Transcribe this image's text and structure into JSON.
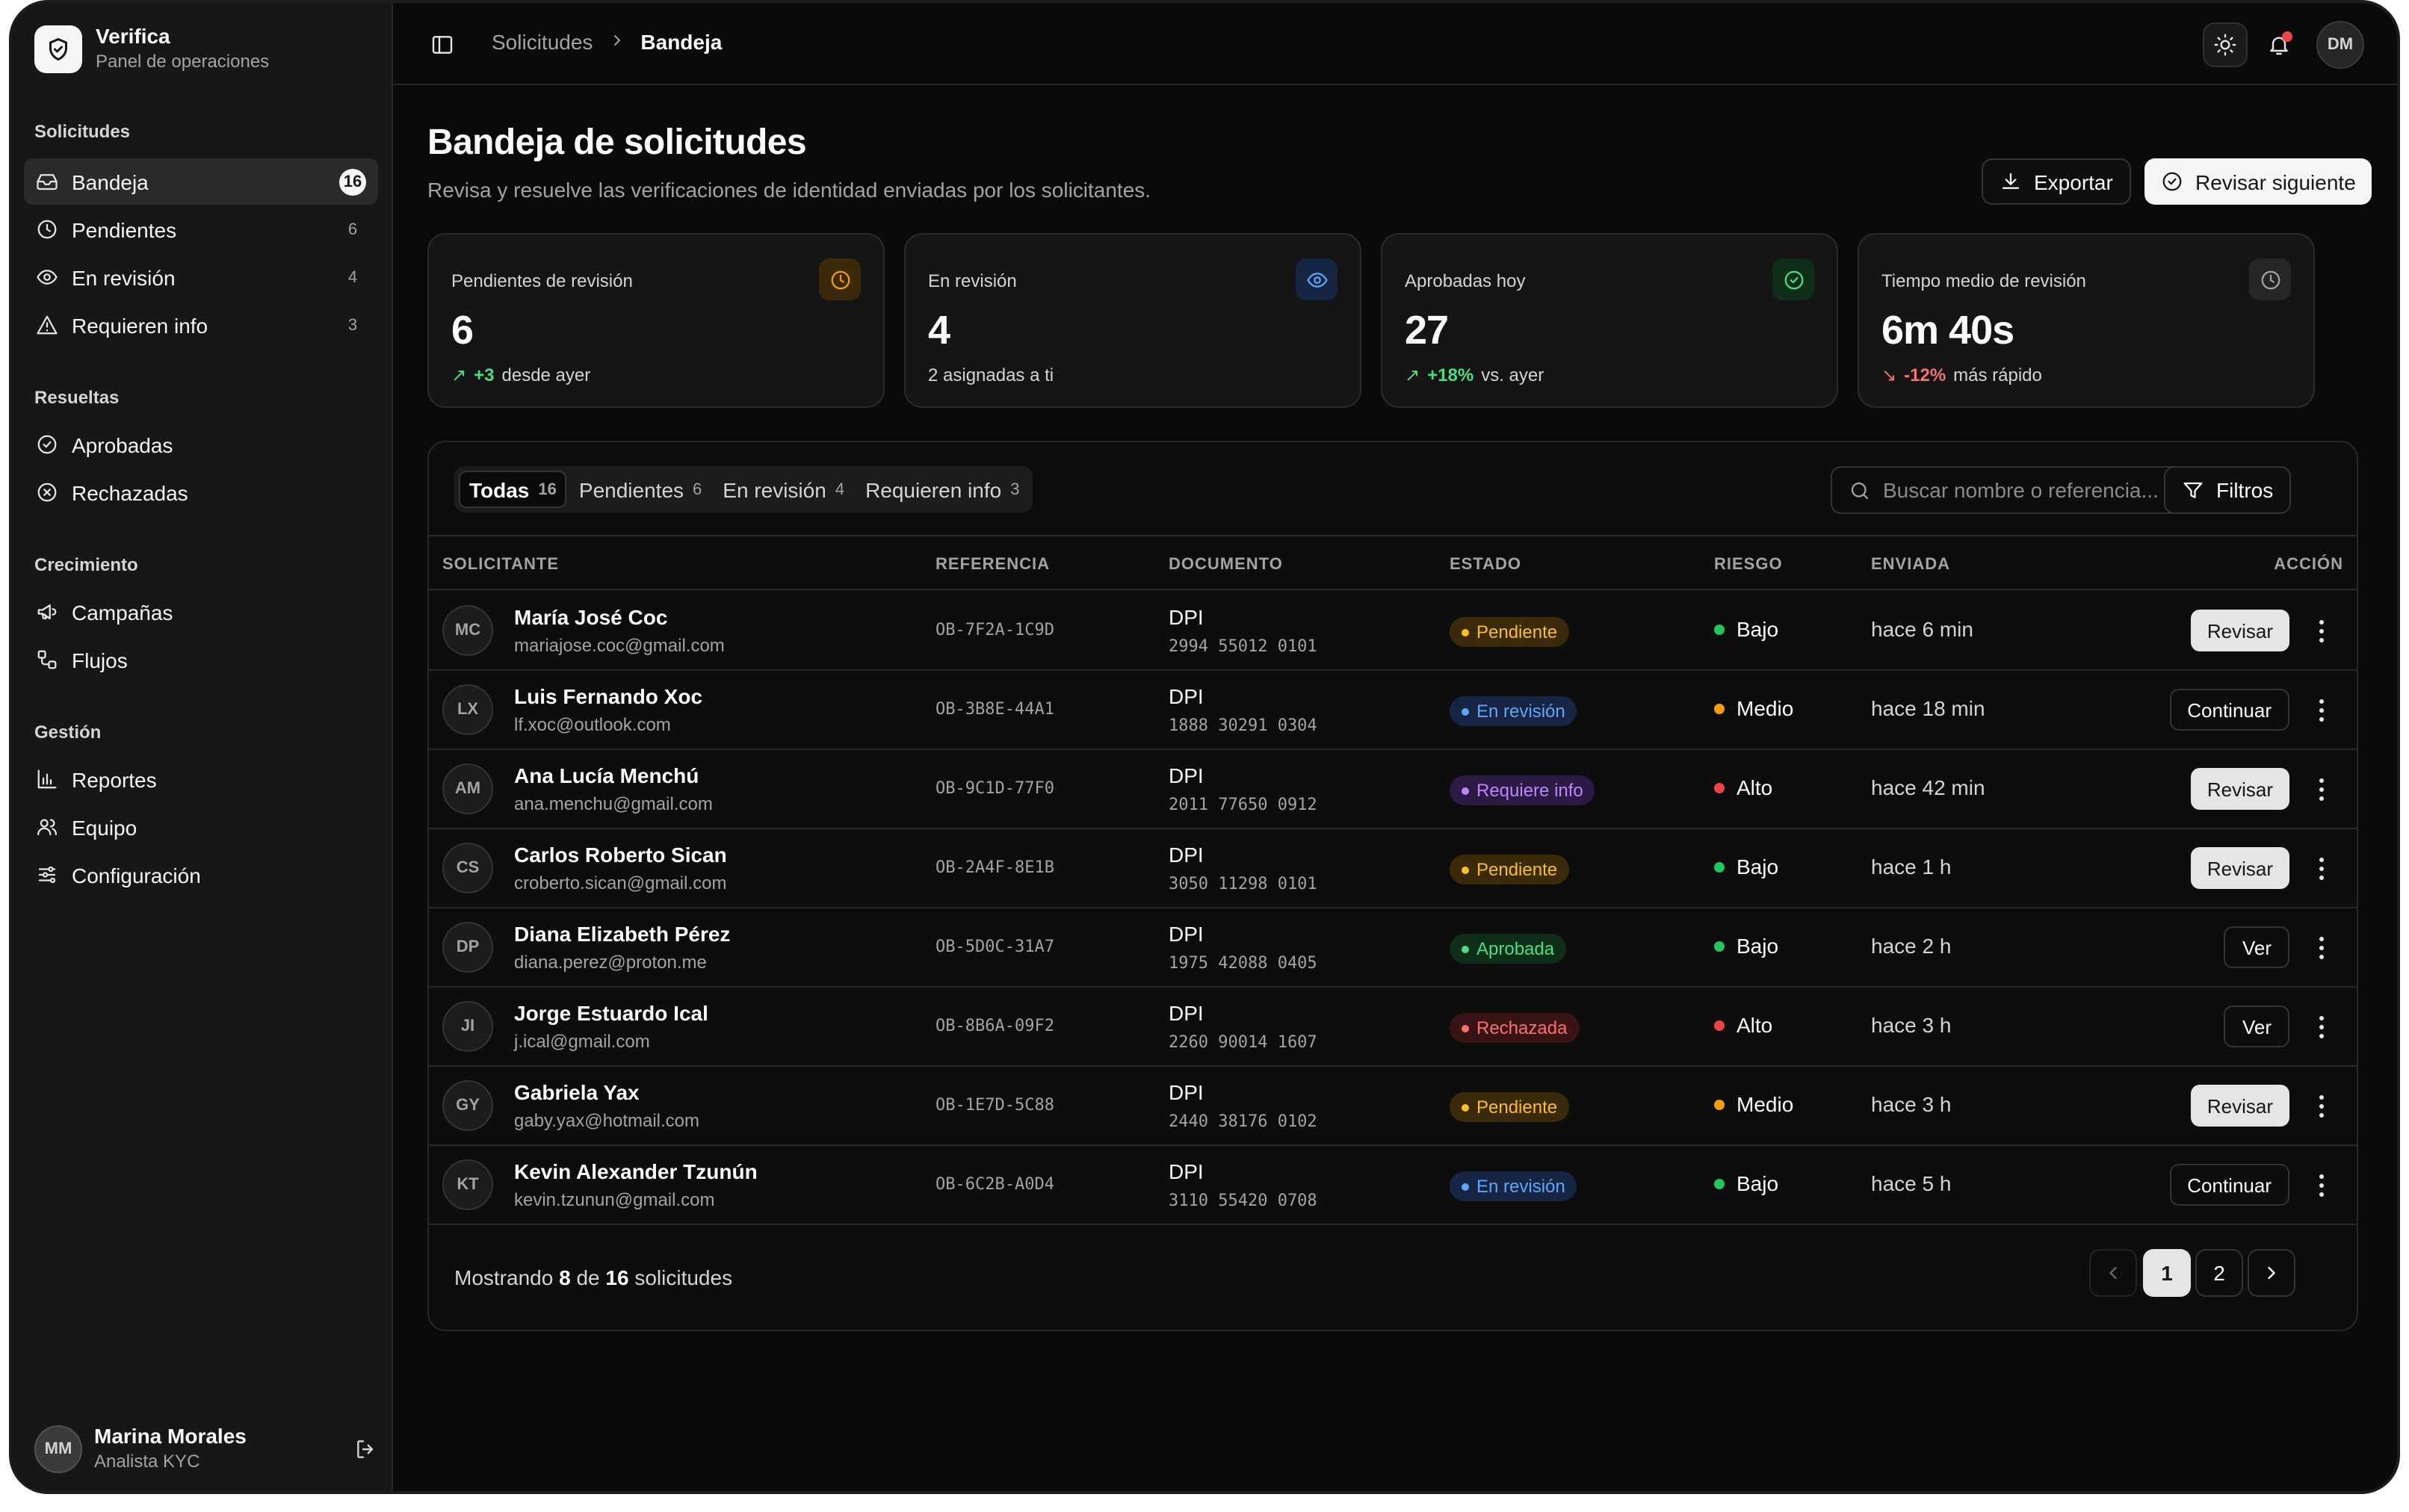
{
  "brand": {
    "name": "Verifica",
    "subtitle": "Panel de operaciones"
  },
  "sidebar": {
    "groups": [
      {
        "label": "Solicitudes",
        "items": [
          {
            "label": "Bandeja",
            "count": "16",
            "icon": "inbox-icon",
            "active": true
          },
          {
            "label": "Pendientes",
            "count": "6",
            "icon": "clock-icon"
          },
          {
            "label": "En revisión",
            "count": "4",
            "icon": "eye-icon"
          },
          {
            "label": "Requieren info",
            "count": "3",
            "icon": "alert-triangle-icon"
          }
        ]
      },
      {
        "label": "Resueltas",
        "items": [
          {
            "label": "Aprobadas",
            "icon": "check-circle-icon"
          },
          {
            "label": "Rechazadas",
            "icon": "x-circle-icon"
          }
        ]
      },
      {
        "label": "Crecimiento",
        "items": [
          {
            "label": "Campañas",
            "icon": "megaphone-icon"
          },
          {
            "label": "Flujos",
            "icon": "workflow-icon"
          }
        ]
      },
      {
        "label": "Gestión",
        "items": [
          {
            "label": "Reportes",
            "icon": "bar-chart-icon"
          },
          {
            "label": "Equipo",
            "icon": "users-icon"
          },
          {
            "label": "Configuración",
            "icon": "sliders-icon"
          }
        ]
      }
    ],
    "user": {
      "initials": "MM",
      "name": "Marina Morales",
      "role": "Analista KYC"
    }
  },
  "topbar": {
    "breadcrumb": [
      "Solicitudes",
      "Bandeja"
    ],
    "avatar": "DM"
  },
  "header": {
    "title": "Bandeja de solicitudes",
    "subtitle": "Revisa y resuelve las verificaciones de identidad enviadas por los solicitantes.",
    "export_label": "Exportar",
    "next_label": "Revisar siguiente"
  },
  "stats": [
    {
      "label": "Pendientes de revisión",
      "value": "6",
      "delta": "+3",
      "delta_color": "#4ade80",
      "foot": "desde ayer",
      "icon": "clock-icon",
      "accent": "#f59e0b",
      "accent_bg": "#3a2a0a"
    },
    {
      "label": "En revisión",
      "value": "4",
      "delta": "",
      "foot": "2 asignadas a ti",
      "icon": "eye-icon",
      "accent": "#60a5fa",
      "accent_bg": "#172544"
    },
    {
      "label": "Aprobadas hoy",
      "value": "27",
      "delta": "+18%",
      "delta_color": "#4ade80",
      "foot": "vs. ayer",
      "icon": "check-circle-icon",
      "accent": "#4ade80",
      "accent_bg": "#0f2e1a"
    },
    {
      "label": "Tiempo medio de revisión",
      "value": "6m 40s",
      "delta": "-12%",
      "delta_color": "#f87171",
      "foot": "más rápido",
      "icon": "clock-icon",
      "accent": "#a3a3a3",
      "accent_bg": "#262626"
    }
  ],
  "tabs": [
    {
      "label": "Todas",
      "count": "16",
      "active": true
    },
    {
      "label": "Pendientes",
      "count": "6"
    },
    {
      "label": "En revisión",
      "count": "4"
    },
    {
      "label": "Requieren info",
      "count": "3"
    }
  ],
  "search": {
    "placeholder": "Buscar nombre o referencia..."
  },
  "filters_label": "Filtros",
  "columns": [
    "SOLICITANTE",
    "REFERENCIA",
    "DOCUMENTO",
    "ESTADO",
    "RIESGO",
    "ENVIADA",
    "ACCIÓN"
  ],
  "rows": [
    {
      "initials": "MC",
      "name": "María José Coc",
      "email": "mariajose.coc@gmail.com",
      "ref": "OB-7F2A-1C9D",
      "doc": "DPI",
      "doc_num": "2994 55012 0101",
      "status": "Pendiente",
      "risk": "Bajo",
      "sent": "hace 6 min",
      "action": "Revisar"
    },
    {
      "initials": "LX",
      "name": "Luis Fernando Xoc",
      "email": "lf.xoc@outlook.com",
      "ref": "OB-3B8E-44A1",
      "doc": "DPI",
      "doc_num": "1888 30291 0304",
      "status": "En revisión",
      "risk": "Medio",
      "sent": "hace 18 min",
      "action": "Continuar"
    },
    {
      "initials": "AM",
      "name": "Ana Lucía Menchú",
      "email": "ana.menchu@gmail.com",
      "ref": "OB-9C1D-77F0",
      "doc": "DPI",
      "doc_num": "2011 77650 0912",
      "status": "Requiere info",
      "risk": "Alto",
      "sent": "hace 42 min",
      "action": "Revisar"
    },
    {
      "initials": "CS",
      "name": "Carlos Roberto Sican",
      "email": "croberto.sican@gmail.com",
      "ref": "OB-2A4F-8E1B",
      "doc": "DPI",
      "doc_num": "3050 11298 0101",
      "status": "Pendiente",
      "risk": "Bajo",
      "sent": "hace 1 h",
      "action": "Revisar"
    },
    {
      "initials": "DP",
      "name": "Diana Elizabeth Pérez",
      "email": "diana.perez@proton.me",
      "ref": "OB-5D0C-31A7",
      "doc": "DPI",
      "doc_num": "1975 42088 0405",
      "status": "Aprobada",
      "risk": "Bajo",
      "sent": "hace 2 h",
      "action": "Ver"
    },
    {
      "initials": "JI",
      "name": "Jorge Estuardo Ical",
      "email": "j.ical@gmail.com",
      "ref": "OB-8B6A-09F2",
      "doc": "DPI",
      "doc_num": "2260 90014 1607",
      "status": "Rechazada",
      "risk": "Alto",
      "sent": "hace 3 h",
      "action": "Ver"
    },
    {
      "initials": "GY",
      "name": "Gabriela Yax",
      "email": "gaby.yax@hotmail.com",
      "ref": "OB-1E7D-5C88",
      "doc": "DPI",
      "doc_num": "2440 38176 0102",
      "status": "Pendiente",
      "risk": "Medio",
      "sent": "hace 3 h",
      "action": "Revisar"
    },
    {
      "initials": "KT",
      "name": "Kevin Alexander Tzunún",
      "email": "kevin.tzunun@gmail.com",
      "ref": "OB-6C2B-A0D4",
      "doc": "DPI",
      "doc_num": "3110 55420 0708",
      "status": "En revisión",
      "risk": "Bajo",
      "sent": "hace 5 h",
      "action": "Continuar"
    }
  ],
  "status_colors": {
    "Pendiente": {
      "fg": "#fbbf24",
      "bg": "#3a2a0a"
    },
    "En revisión": {
      "fg": "#60a5fa",
      "bg": "#172544"
    },
    "Requiere info": {
      "fg": "#c084fc",
      "bg": "#2b1a44"
    },
    "Aprobada": {
      "fg": "#4ade80",
      "bg": "#0f2e1a"
    },
    "Rechazada": {
      "fg": "#f87171",
      "bg": "#3a1414"
    }
  },
  "risk_colors": {
    "Bajo": "#22c55e",
    "Medio": "#f59e0b",
    "Alto": "#ef4444"
  },
  "footer": {
    "showing_prefix": "Mostrando",
    "shown": "8",
    "of": "de",
    "total": "16",
    "suffix": "solicitudes",
    "pages": [
      "1",
      "2"
    ],
    "current_page": "1"
  }
}
